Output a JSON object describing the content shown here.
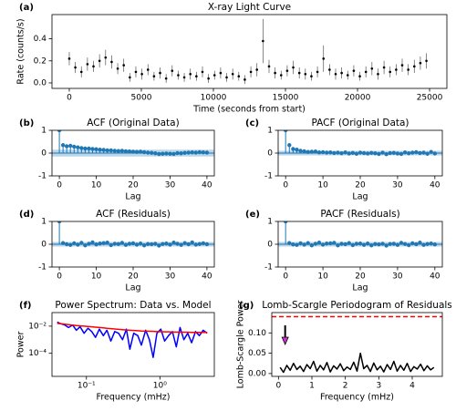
{
  "chart_data": [
    {
      "type": "errorbar",
      "panel_label": "(a)",
      "title": "X-ray Light Curve",
      "xlabel": "Time (seconds from start)",
      "ylabel": "Rate (counts/s)",
      "x": [
        0,
        420,
        840,
        1260,
        1680,
        2100,
        2520,
        2940,
        3360,
        3780,
        4200,
        4620,
        5040,
        5460,
        5880,
        6300,
        6720,
        7140,
        7560,
        7980,
        8400,
        8820,
        9240,
        9660,
        10080,
        10500,
        10920,
        11340,
        11760,
        12180,
        12600,
        13020,
        13440,
        13860,
        14280,
        14700,
        15120,
        15540,
        15960,
        16380,
        16800,
        17220,
        17640,
        18060,
        18480,
        18900,
        19320,
        19740,
        20160,
        20580,
        21000,
        21420,
        21840,
        22260,
        22680,
        23100,
        23520,
        23940,
        24360,
        24780
      ],
      "values": [
        0.22,
        0.14,
        0.1,
        0.17,
        0.15,
        0.2,
        0.23,
        0.19,
        0.13,
        0.16,
        0.05,
        0.1,
        0.08,
        0.12,
        0.06,
        0.09,
        0.04,
        0.11,
        0.07,
        0.05,
        0.08,
        0.06,
        0.1,
        0.04,
        0.07,
        0.09,
        0.05,
        0.08,
        0.06,
        0.03,
        0.1,
        0.12,
        0.38,
        0.15,
        0.09,
        0.07,
        0.11,
        0.14,
        0.09,
        0.08,
        0.06,
        0.1,
        0.22,
        0.12,
        0.08,
        0.09,
        0.07,
        0.11,
        0.06,
        0.1,
        0.13,
        0.08,
        0.14,
        0.1,
        0.12,
        0.16,
        0.12,
        0.15,
        0.18,
        0.2
      ],
      "errors": [
        0.06,
        0.05,
        0.05,
        0.06,
        0.05,
        0.06,
        0.07,
        0.06,
        0.05,
        0.06,
        0.04,
        0.05,
        0.05,
        0.05,
        0.04,
        0.05,
        0.04,
        0.05,
        0.04,
        0.04,
        0.05,
        0.04,
        0.05,
        0.04,
        0.04,
        0.05,
        0.04,
        0.05,
        0.04,
        0.04,
        0.05,
        0.06,
        0.2,
        0.06,
        0.05,
        0.04,
        0.05,
        0.06,
        0.05,
        0.05,
        0.04,
        0.05,
        0.12,
        0.05,
        0.05,
        0.05,
        0.04,
        0.05,
        0.04,
        0.05,
        0.06,
        0.05,
        0.06,
        0.05,
        0.05,
        0.06,
        0.05,
        0.06,
        0.06,
        0.07
      ],
      "color": "#000000",
      "xlim": [
        -1200,
        26200
      ],
      "ylim": [
        -0.05,
        0.62
      ],
      "xticks": [
        0,
        5000,
        10000,
        15000,
        20000,
        25000
      ],
      "yticks": [
        {
          "value": 0,
          "label": "0.0"
        },
        {
          "value": 0.2,
          "label": "0.2"
        },
        {
          "value": 0.4,
          "label": "0.4"
        }
      ]
    },
    {
      "type": "stem",
      "panel_label": "(b)",
      "title": "ACF (Original Data)",
      "xlabel": "Lag",
      "color": "#1f77b4",
      "confidence": 0.15,
      "x": [
        0,
        1,
        2,
        3,
        4,
        5,
        6,
        7,
        8,
        9,
        10,
        11,
        12,
        13,
        14,
        15,
        16,
        17,
        18,
        19,
        20,
        21,
        22,
        23,
        24,
        25,
        26,
        27,
        28,
        29,
        30,
        31,
        32,
        33,
        34,
        35,
        36,
        37,
        38,
        39,
        40
      ],
      "values": [
        1,
        0.35,
        0.3,
        0.32,
        0.28,
        0.25,
        0.22,
        0.2,
        0.2,
        0.18,
        0.17,
        0.15,
        0.14,
        0.12,
        0.12,
        0.1,
        0.09,
        0.1,
        0.08,
        0.07,
        0.06,
        0.05,
        0.06,
        0.04,
        0.02,
        0.01,
        -0.01,
        -0.04,
        -0.03,
        -0.02,
        -0.03,
        -0.04,
        0,
        -0.01,
        0.01,
        0.02,
        0.03,
        0.02,
        0.04,
        0.03,
        0.02
      ],
      "xlim": [
        -2,
        42
      ],
      "ylim": [
        -1,
        1
      ],
      "xticks": [
        0,
        10,
        20,
        30,
        40
      ],
      "yticks": [
        -1,
        0,
        1
      ]
    },
    {
      "type": "stem",
      "panel_label": "(c)",
      "title": "PACF (Original Data)",
      "xlabel": "Lag",
      "color": "#1f77b4",
      "confidence": 0.1,
      "x": [
        0,
        1,
        2,
        3,
        4,
        5,
        6,
        7,
        8,
        9,
        10,
        11,
        12,
        13,
        14,
        15,
        16,
        17,
        18,
        19,
        20,
        21,
        22,
        23,
        24,
        25,
        26,
        27,
        28,
        29,
        30,
        31,
        32,
        33,
        34,
        35,
        36,
        37,
        38,
        39,
        40
      ],
      "values": [
        1,
        0.35,
        0.18,
        0.15,
        0.1,
        0.08,
        0.05,
        0.06,
        0.07,
        0.03,
        0.04,
        0.02,
        0.03,
        0,
        0.02,
        -0.01,
        0.03,
        -0.02,
        0.01,
        -0.03,
        0.02,
        0,
        -0.02,
        0.01,
        -0.01,
        -0.04,
        0.02,
        -0.05,
        0,
        0.01,
        -0.02,
        -0.04,
        0.03,
        -0.01,
        0.02,
        0.04,
        0,
        0.02,
        -0.03,
        0.05,
        -0.02
      ],
      "xlim": [
        -2,
        42
      ],
      "ylim": [
        -1,
        1
      ],
      "xticks": [
        0,
        10,
        20,
        30,
        40
      ],
      "yticks": [
        -1,
        0,
        1
      ]
    },
    {
      "type": "stem",
      "panel_label": "(d)",
      "title": "ACF (Residuals)",
      "xlabel": "Lag",
      "color": "#1f77b4",
      "confidence": 0.1,
      "x": [
        0,
        1,
        2,
        3,
        4,
        5,
        6,
        7,
        8,
        9,
        10,
        11,
        12,
        13,
        14,
        15,
        16,
        17,
        18,
        19,
        20,
        21,
        22,
        23,
        24,
        25,
        26,
        27,
        28,
        29,
        30,
        31,
        32,
        33,
        34,
        35,
        36,
        37,
        38,
        39,
        40
      ],
      "values": [
        1,
        0.05,
        0,
        -0.03,
        0.04,
        -0.02,
        0.06,
        -0.05,
        0.02,
        0.08,
        -0.01,
        0.03,
        0.05,
        0.07,
        -0.04,
        0.02,
        0.01,
        0.06,
        -0.03,
        0.02,
        0.04,
        -0.02,
        0.03,
        -0.05,
        0.01,
        0,
        0.02,
        -0.06,
        0.01,
        0.03,
        -0.02,
        0.07,
        0.02,
        -0.03,
        0.05,
        0,
        0.08,
        -0.02,
        0.01,
        0.04,
        0
      ],
      "xlim": [
        -2,
        42
      ],
      "ylim": [
        -1,
        1
      ],
      "xticks": [
        0,
        10,
        20,
        30,
        40
      ],
      "yticks": [
        -1,
        0,
        1
      ]
    },
    {
      "type": "stem",
      "panel_label": "(e)",
      "title": "PACF (Residuals)",
      "xlabel": "Lag",
      "color": "#1f77b4",
      "confidence": 0.1,
      "x": [
        0,
        1,
        2,
        3,
        4,
        5,
        6,
        7,
        8,
        9,
        10,
        11,
        12,
        13,
        14,
        15,
        16,
        17,
        18,
        19,
        20,
        21,
        22,
        23,
        24,
        25,
        26,
        27,
        28,
        29,
        30,
        31,
        32,
        33,
        34,
        35,
        36,
        37,
        38,
        39,
        40
      ],
      "values": [
        1,
        0.05,
        -0.01,
        -0.03,
        0.04,
        -0.02,
        0.05,
        -0.05,
        0.02,
        0.07,
        -0.02,
        0.03,
        0.04,
        0.06,
        -0.05,
        0.02,
        0,
        0.05,
        -0.04,
        0.02,
        0.03,
        -0.03,
        0.03,
        -0.05,
        0.01,
        -0.01,
        0.02,
        -0.06,
        0.01,
        0.02,
        -0.03,
        0.06,
        0.01,
        -0.04,
        0.04,
        0,
        0.07,
        -0.03,
        0.01,
        0.03,
        -0.01
      ],
      "xlim": [
        -2,
        42
      ],
      "ylim": [
        -1,
        1
      ],
      "xticks": [
        0,
        10,
        20,
        30,
        40
      ],
      "yticks": [
        -1,
        0,
        1
      ]
    },
    {
      "type": "line",
      "panel_label": "(f)",
      "title": "Power Spectrum: Data vs. Model",
      "xlabel": "Frequency (mHz)",
      "ylabel": "Power",
      "xscale": "log",
      "yscale": "log",
      "x": [
        0.04,
        0.045,
        0.051,
        0.057,
        0.065,
        0.073,
        0.082,
        0.093,
        0.105,
        0.118,
        0.133,
        0.15,
        0.17,
        0.19,
        0.215,
        0.243,
        0.274,
        0.31,
        0.35,
        0.39,
        0.44,
        0.5,
        0.56,
        0.64,
        0.72,
        0.81,
        0.91,
        1.03,
        1.16,
        1.31,
        1.48,
        1.67,
        1.88,
        2.12,
        2.39,
        2.7,
        3.05,
        3.44,
        3.88,
        4.4
      ],
      "series": [
        {
          "color": "#0000ff",
          "values": [
            0.02,
            0.015,
            0.012,
            0.008,
            0.012,
            0.005,
            0.009,
            0.003,
            0.007,
            0.004,
            0.0015,
            0.006,
            0.002,
            0.005,
            0.0008,
            0.004,
            0.003,
            0.001,
            0.006,
            0.0002,
            0.003,
            0.002,
            0.0004,
            0.005,
            0.001,
            5e-05,
            0.003,
            0.006,
            0.0008,
            0.002,
            0.004,
            0.0003,
            0.008,
            0.001,
            0.003,
            0.0006,
            0.004,
            0.002,
            0.005,
            0.003
          ]
        },
        {
          "color": "#ff0000",
          "values": [
            0.016,
            0.015,
            0.014,
            0.013,
            0.012,
            0.011,
            0.0105,
            0.01,
            0.0095,
            0.009,
            0.0085,
            0.008,
            0.0075,
            0.007,
            0.0066,
            0.0062,
            0.0058,
            0.0055,
            0.0052,
            0.005,
            0.0048,
            0.0046,
            0.0044,
            0.0043,
            0.0042,
            0.0041,
            0.004,
            0.0039,
            0.0038,
            0.0038,
            0.0037,
            0.0037,
            0.0036,
            0.0036,
            0.0036,
            0.0035,
            0.0035,
            0.0035,
            0.0035,
            0.0035
          ]
        }
      ],
      "xlim": [
        0.034,
        5.5
      ],
      "ylim": [
        2e-06,
        0.1
      ],
      "xticks": [
        {
          "value": 0.1,
          "label": "10⁻¹"
        },
        {
          "value": 1,
          "label": "10⁰"
        }
      ],
      "yticks": [
        {
          "value": 0.0001,
          "label": "10⁻⁴"
        },
        {
          "value": 0.01,
          "label": "10⁻²"
        }
      ]
    },
    {
      "type": "line",
      "panel_label": "(g)",
      "title": "Lomb-Scargle Periodogram of Residuals",
      "xlabel": "Frequency (mHz)",
      "ylabel": "Lomb-Scargle Power",
      "threshold": 0.14,
      "threshold_color": "#ff0000",
      "marker_frequency": 0.2,
      "marker_color": "#cc33cc",
      "x": [
        0.05,
        0.15,
        0.25,
        0.35,
        0.45,
        0.55,
        0.65,
        0.75,
        0.85,
        0.95,
        1.05,
        1.15,
        1.25,
        1.35,
        1.45,
        1.55,
        1.65,
        1.75,
        1.85,
        1.95,
        2.05,
        2.15,
        2.25,
        2.35,
        2.45,
        2.55,
        2.65,
        2.75,
        2.85,
        2.95,
        3.05,
        3.15,
        3.25,
        3.35,
        3.45,
        3.55,
        3.65,
        3.75,
        3.85,
        3.95,
        4.05,
        4.15,
        4.25,
        4.35,
        4.45,
        4.55,
        4.65
      ],
      "series": [
        {
          "color": "#000000",
          "values": [
            0.015,
            0.003,
            0.02,
            0.008,
            0.025,
            0.01,
            0.018,
            0.005,
            0.022,
            0.012,
            0.03,
            0.006,
            0.02,
            0.009,
            0.027,
            0.004,
            0.019,
            0.011,
            0.024,
            0.007,
            0.016,
            0.01,
            0.028,
            0.006,
            0.05,
            0.012,
            0.02,
            0.005,
            0.026,
            0.009,
            0.018,
            0.004,
            0.022,
            0.01,
            0.03,
            0.006,
            0.02,
            0.008,
            0.025,
            0.005,
            0.017,
            0.011,
            0.023,
            0.007,
            0.019,
            0.009,
            0.015
          ]
        }
      ],
      "xlim": [
        -0.2,
        4.9
      ],
      "ylim": [
        -0.007,
        0.15
      ],
      "xticks": [
        0,
        1,
        2,
        3,
        4
      ],
      "yticks": [
        {
          "value": 0,
          "label": "0.00"
        },
        {
          "value": 0.05,
          "label": "0.05"
        },
        {
          "value": 0.1,
          "label": "0.10"
        }
      ]
    }
  ]
}
